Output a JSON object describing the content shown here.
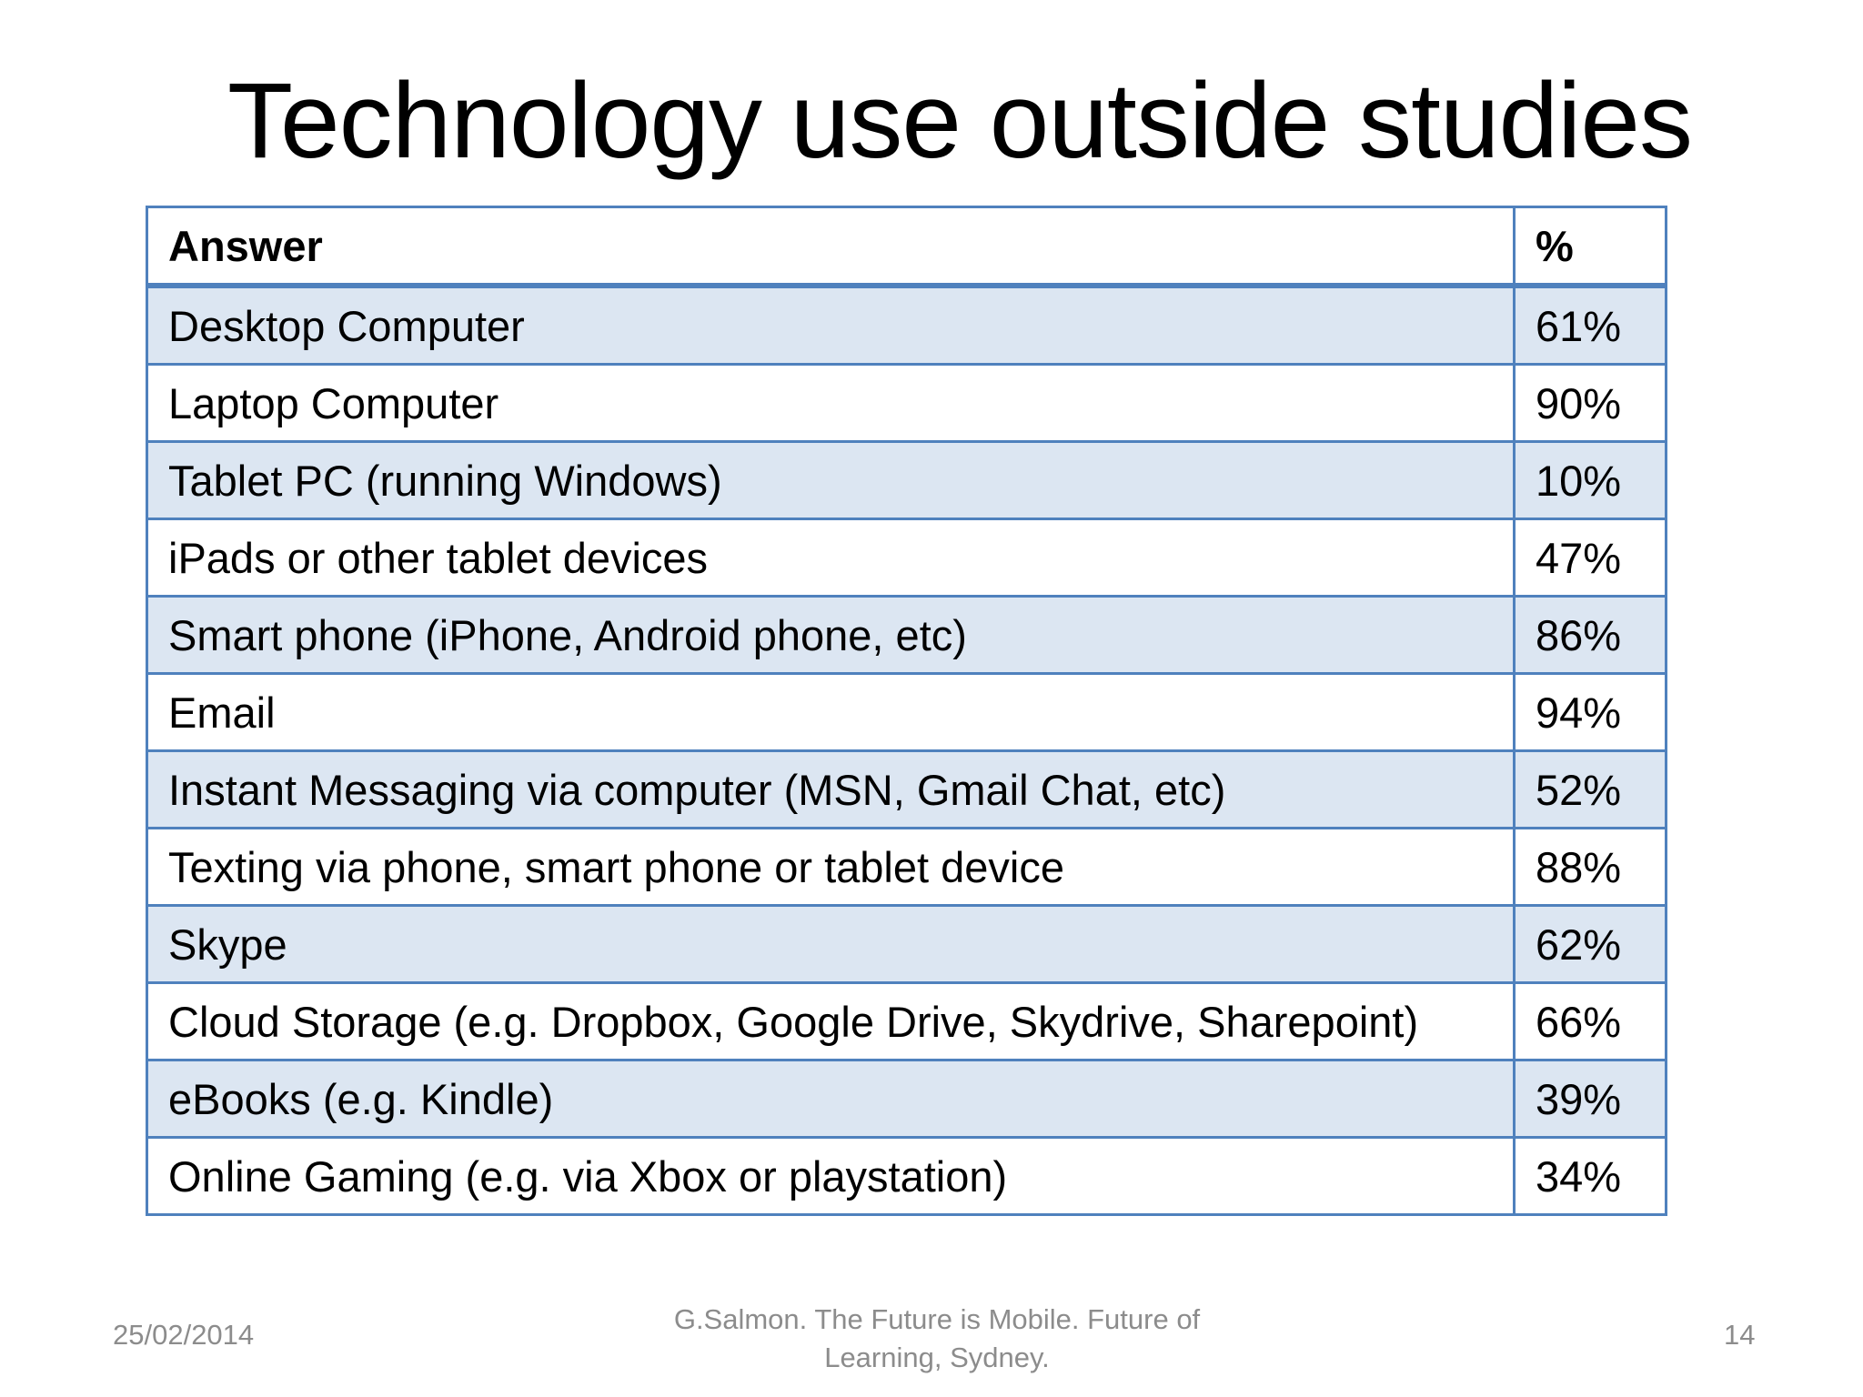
{
  "slide": {
    "title": "Technology use outside studies"
  },
  "table": {
    "headers": {
      "answer": "Answer",
      "percent": "%"
    },
    "rows": [
      {
        "answer": "Desktop Computer",
        "percent": "61%"
      },
      {
        "answer": "Laptop Computer",
        "percent": "90%"
      },
      {
        "answer": "Tablet PC (running Windows)",
        "percent": "10%"
      },
      {
        "answer": "iPads or other tablet devices",
        "percent": "47%"
      },
      {
        "answer": "Smart phone (iPhone, Android phone, etc)",
        "percent": "86%"
      },
      {
        "answer": "Email",
        "percent": "94%"
      },
      {
        "answer": "Instant Messaging via computer (MSN, Gmail Chat, etc)",
        "percent": "52%"
      },
      {
        "answer": "Texting via phone, smart phone or tablet device",
        "percent": "88%"
      },
      {
        "answer": "Skype",
        "percent": "62%"
      },
      {
        "answer": "Cloud Storage (e.g. Dropbox, Google Drive, Skydrive, Sharepoint)",
        "percent": "66%"
      },
      {
        "answer": "eBooks (e.g. Kindle)",
        "percent": "39%"
      },
      {
        "answer": "Online Gaming (e.g. via Xbox or playstation)",
        "percent": "34%"
      }
    ]
  },
  "footer": {
    "date": "25/02/2014",
    "source_line1": "G.Salmon. The Future is Mobile. Future of",
    "source_line2": "Learning, Sydney.",
    "page_number": "14"
  },
  "colors": {
    "border": "#4f81bd",
    "shaded_row": "#dce6f2",
    "footer_text": "#8c8c8c"
  }
}
